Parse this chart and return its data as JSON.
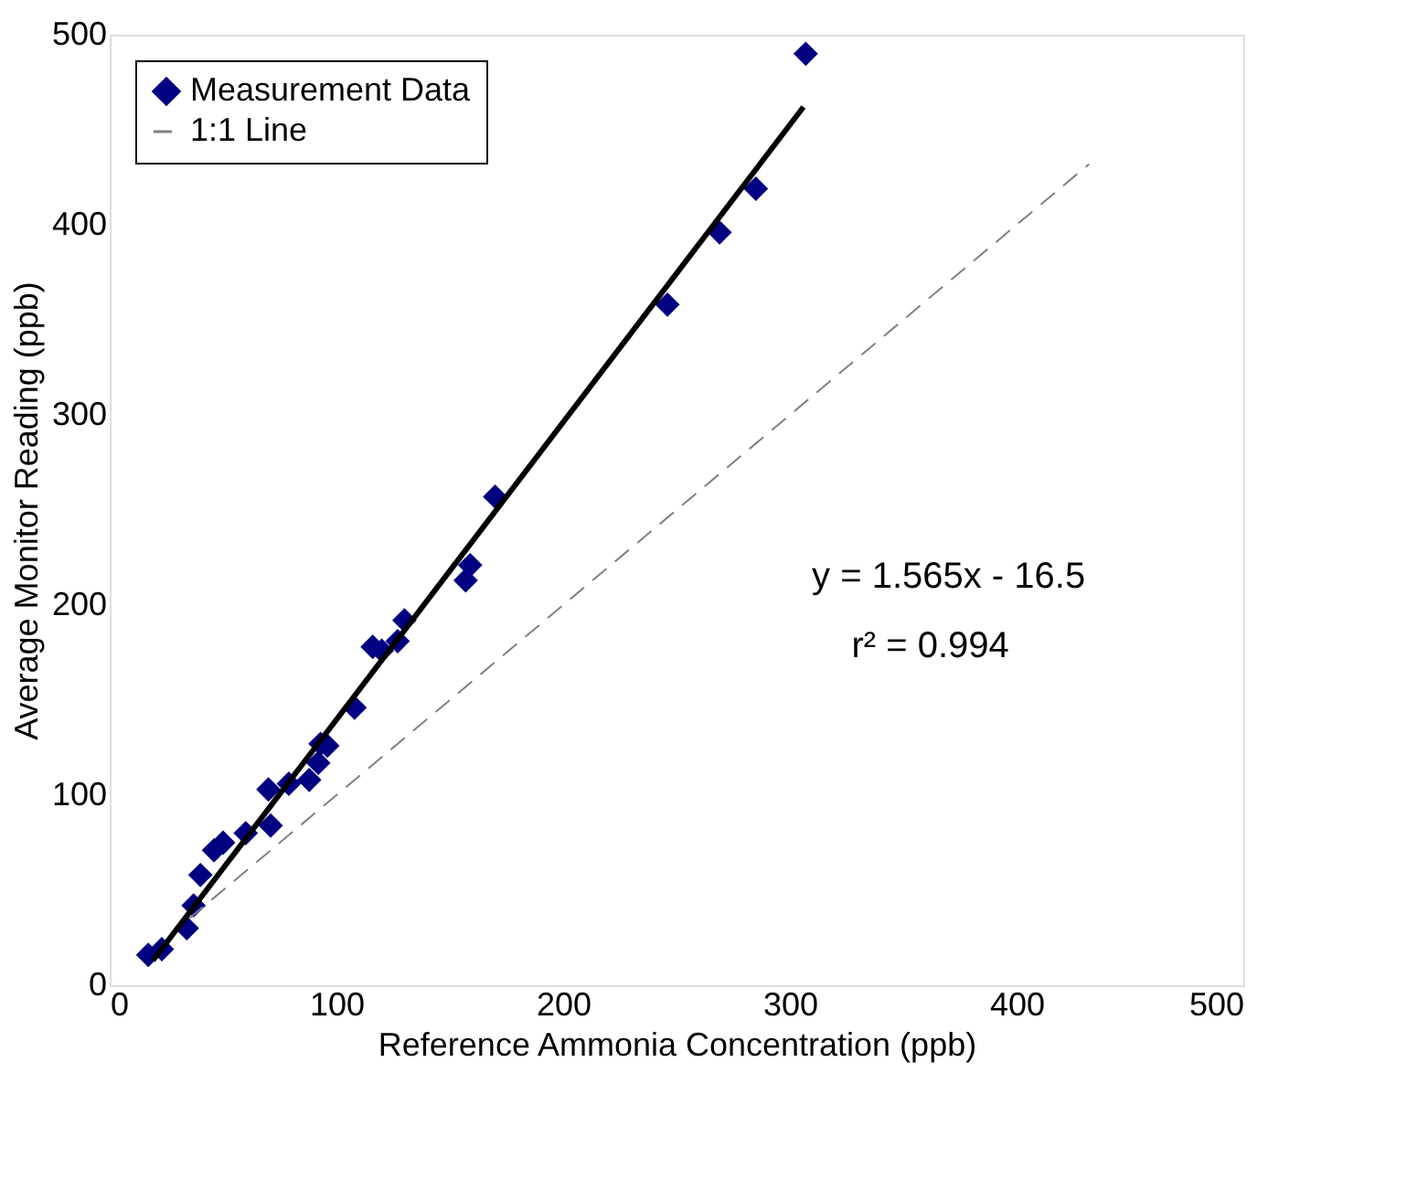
{
  "chart_data": {
    "type": "scatter",
    "xlabel": "Reference Ammonia Concentration (ppb)",
    "ylabel": "Average Monitor Reading (ppb)",
    "xlim": [
      0,
      500
    ],
    "ylim": [
      0,
      500
    ],
    "xticks": [
      0,
      100,
      200,
      300,
      400,
      500
    ],
    "yticks": [
      0,
      100,
      200,
      300,
      400,
      500
    ],
    "grid": false,
    "legend": "top left",
    "annotations": [
      "y = 1.565x - 16.5",
      "r² = 0.994"
    ],
    "series": [
      {
        "name": "Measurement Data",
        "type": "scatter",
        "marker": "diamond",
        "color": "#000080",
        "x": [
          17,
          23,
          34,
          37,
          40,
          46,
          50,
          60,
          71,
          70,
          79,
          88,
          92,
          93,
          96,
          108,
          116,
          120,
          127,
          130,
          157,
          159,
          170,
          246,
          269,
          285,
          307
        ],
        "values": [
          16,
          19,
          30,
          42,
          58,
          71,
          75,
          80,
          84,
          103,
          106,
          108,
          117,
          127,
          126,
          146,
          178,
          176,
          181,
          192,
          213,
          221,
          257,
          358,
          396,
          419,
          490
        ]
      },
      {
        "type": "line",
        "color": "#000000",
        "line_style": "solid",
        "x": [
          19,
          306
        ],
        "values": [
          13,
          462
        ]
      },
      {
        "name": "1:1 Line",
        "type": "line",
        "color": "#808080",
        "line_style": "dashed",
        "x": [
          35,
          432
        ],
        "values": [
          35,
          432
        ]
      }
    ]
  }
}
